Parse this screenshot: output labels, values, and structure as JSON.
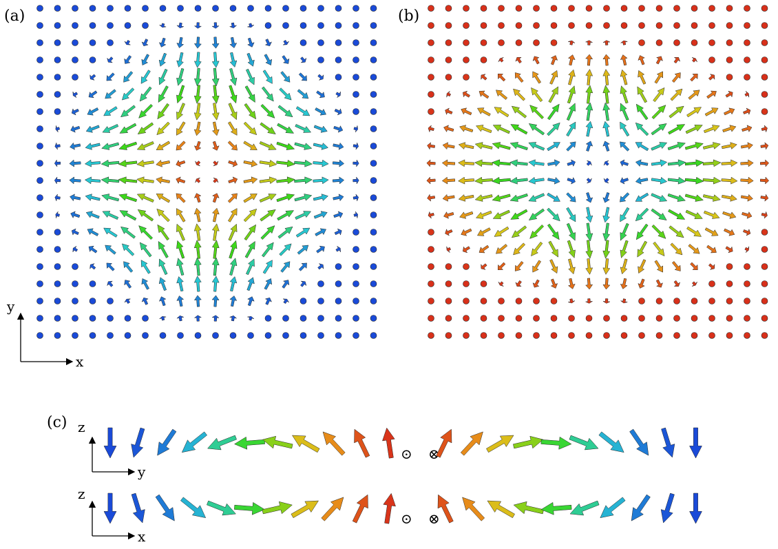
{
  "panels": {
    "a": {
      "label": "(a)",
      "kind": "antiskyrmion-type spin lattice",
      "axes": {
        "vertical": "y",
        "horizontal": "x"
      }
    },
    "b": {
      "label": "(b)",
      "kind": "elongated spin texture"
    },
    "c": {
      "label": "(c)",
      "row1": {
        "vertical": "z",
        "horizontal": "y"
      },
      "row2": {
        "vertical": "z",
        "horizontal": "x"
      },
      "symbols": {
        "out_of_plane": "⊙",
        "into_plane": "⊗"
      }
    }
  },
  "colors": {
    "up": "#d8301a",
    "orange": "#e8881a",
    "yellow": "#d8c81a",
    "green": "#3cd81a",
    "cyan": "#28c8c8",
    "blue": "#1a4ad8"
  }
}
